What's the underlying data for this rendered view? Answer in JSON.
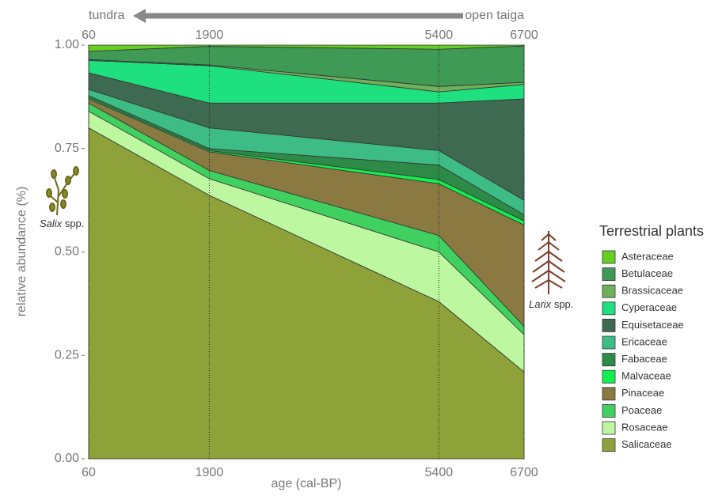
{
  "chart_data": {
    "type": "stacked_area",
    "x": [
      60,
      1900,
      5400,
      6700
    ],
    "xlim": [
      60,
      6700
    ],
    "xticks": [
      60,
      1900,
      5400,
      6700
    ],
    "ylim": [
      0,
      1
    ],
    "yticks": [
      {
        "value": 0,
        "label": "0.00"
      },
      {
        "value": 0.25,
        "label": "0.25"
      },
      {
        "value": 0.5,
        "label": "0.50"
      },
      {
        "value": 0.75,
        "label": "0.75"
      },
      {
        "value": 1,
        "label": "1.00"
      }
    ],
    "x_label": "age (cal-BP)",
    "y_label": "relative abundance (%)",
    "legend_title": "Terrestrial plants",
    "legend_position": "right",
    "annotations": {
      "left_end": "tundra",
      "right_end": "open taiga",
      "salix_genus": "Salix",
      "salix_suffix": "spp.",
      "larix_genus": "Larix",
      "larix_suffix": "spp."
    },
    "series": [
      {
        "name": "Salicaceae",
        "color": "#8fa23a",
        "values": [
          0.8,
          0.637,
          0.38,
          0.21
        ]
      },
      {
        "name": "Rosaceae",
        "color": "#bdf7a0",
        "values": [
          0.04,
          0.04,
          0.12,
          0.09
        ]
      },
      {
        "name": "Poaceae",
        "color": "#40d060",
        "values": [
          0.02,
          0.02,
          0.04,
          0.02
        ]
      },
      {
        "name": "Pinaceae",
        "color": "#8a7a42",
        "values": [
          0.01,
          0.045,
          0.125,
          0.245
        ]
      },
      {
        "name": "Malvaceae",
        "color": "#12f050",
        "values": [
          0.003,
          0.003,
          0.01,
          0.01
        ]
      },
      {
        "name": "Fabaceae",
        "color": "#2e8a47",
        "values": [
          0.005,
          0.005,
          0.035,
          0.015
        ]
      },
      {
        "name": "Ericaceae",
        "color": "#3dbd85",
        "values": [
          0.015,
          0.05,
          0.035,
          0.035
        ]
      },
      {
        "name": "Equisetaceae",
        "color": "#3e6a52",
        "values": [
          0.04,
          0.06,
          0.115,
          0.245
        ]
      },
      {
        "name": "Cyperaceae",
        "color": "#1ee07f",
        "values": [
          0.03,
          0.09,
          0.027,
          0.035
        ]
      },
      {
        "name": "Brassicaceae",
        "color": "#70b05a",
        "values": [
          0.002,
          0.002,
          0.013,
          0.005
        ]
      },
      {
        "name": "Betulaceae",
        "color": "#3f9a55",
        "values": [
          0.02,
          0.045,
          0.09,
          0.088
        ]
      },
      {
        "name": "Asteraceae",
        "color": "#66d022",
        "values": [
          0.015,
          0.003,
          0.01,
          0.002
        ]
      }
    ]
  }
}
